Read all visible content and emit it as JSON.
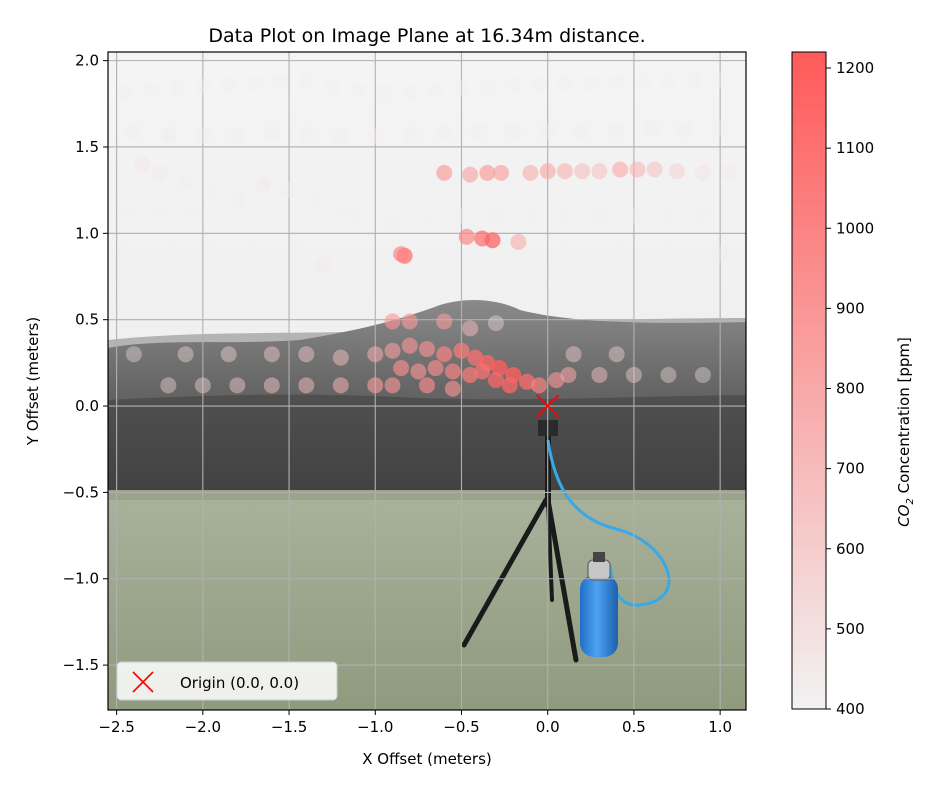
{
  "chart_data": {
    "type": "scatter",
    "title": "Data Plot on Image Plane at 16.34m distance.",
    "xlabel": "X Offset (meters)",
    "ylabel": "Y Offset (meters)",
    "xlim": [
      -2.55,
      1.15
    ],
    "ylim": [
      -1.76,
      2.05
    ],
    "x_ticks": [
      -2.5,
      -2.0,
      -1.5,
      -1.0,
      -0.5,
      0.0,
      0.5,
      1.0
    ],
    "x_tick_labels": [
      "−2.5",
      "−2.0",
      "−1.5",
      "−1.0",
      "−0.5",
      "0.0",
      "0.5",
      "1.0"
    ],
    "y_ticks": [
      -1.5,
      -1.0,
      -0.5,
      0.0,
      0.5,
      1.0,
      1.5,
      2.0
    ],
    "y_tick_labels": [
      "−1.5",
      "−1.0",
      "−0.5",
      "0.0",
      "0.5",
      "1.0",
      "1.5",
      "2.0"
    ],
    "grid": true,
    "background": "photo of field with tripod and gas cylinder",
    "colormap": {
      "low_color": "#f2f2f2",
      "high_color": "#ff5a5a",
      "min": 400,
      "max": 1220
    },
    "colorbar": {
      "label_prefix": "CO",
      "label_subscript": "2",
      "label_suffix": " Concentration [ppm]",
      "ticks": [
        400,
        500,
        600,
        700,
        800,
        900,
        1000,
        1100,
        1200
      ],
      "tick_labels": [
        "400",
        "500",
        "600",
        "700",
        "800",
        "900",
        "1000",
        "1100",
        "1200"
      ]
    },
    "legend": {
      "location": "lower-left",
      "entries": [
        {
          "label": "Origin (0.0, 0.0)",
          "marker": "x",
          "color": "#ff0000"
        }
      ]
    },
    "origin_marker": {
      "x": 0.0,
      "y": 0.0
    },
    "series": [
      {
        "name": "CO2",
        "points": [
          {
            "x": -2.45,
            "y": 1.82,
            "ppm": 420
          },
          {
            "x": -2.3,
            "y": 1.83,
            "ppm": 420
          },
          {
            "x": -2.15,
            "y": 1.84,
            "ppm": 420
          },
          {
            "x": -2.0,
            "y": 1.85,
            "ppm": 420
          },
          {
            "x": -1.85,
            "y": 1.86,
            "ppm": 420
          },
          {
            "x": -1.7,
            "y": 1.87,
            "ppm": 420
          },
          {
            "x": -1.55,
            "y": 1.88,
            "ppm": 420
          },
          {
            "x": -1.4,
            "y": 1.88,
            "ppm": 420
          },
          {
            "x": -1.25,
            "y": 1.85,
            "ppm": 420
          },
          {
            "x": -1.1,
            "y": 1.83,
            "ppm": 420
          },
          {
            "x": -0.95,
            "y": 1.82,
            "ppm": 420
          },
          {
            "x": -0.8,
            "y": 1.82,
            "ppm": 420
          },
          {
            "x": -0.65,
            "y": 1.83,
            "ppm": 420
          },
          {
            "x": -0.5,
            "y": 1.84,
            "ppm": 420
          },
          {
            "x": -0.35,
            "y": 1.85,
            "ppm": 420
          },
          {
            "x": -0.2,
            "y": 1.86,
            "ppm": 420
          },
          {
            "x": -0.05,
            "y": 1.86,
            "ppm": 420
          },
          {
            "x": 0.1,
            "y": 1.87,
            "ppm": 420
          },
          {
            "x": 0.25,
            "y": 1.87,
            "ppm": 420
          },
          {
            "x": 0.4,
            "y": 1.88,
            "ppm": 420
          },
          {
            "x": 0.55,
            "y": 1.88,
            "ppm": 420
          },
          {
            "x": 0.7,
            "y": 1.88,
            "ppm": 420
          },
          {
            "x": 0.85,
            "y": 1.89,
            "ppm": 420
          },
          {
            "x": 1.0,
            "y": 1.89,
            "ppm": 420
          },
          {
            "x": -2.4,
            "y": 1.58,
            "ppm": 440
          },
          {
            "x": -2.2,
            "y": 1.57,
            "ppm": 450
          },
          {
            "x": -2.0,
            "y": 1.57,
            "ppm": 440
          },
          {
            "x": -1.8,
            "y": 1.56,
            "ppm": 440
          },
          {
            "x": -1.6,
            "y": 1.58,
            "ppm": 430
          },
          {
            "x": -1.4,
            "y": 1.57,
            "ppm": 440
          },
          {
            "x": -1.2,
            "y": 1.56,
            "ppm": 430
          },
          {
            "x": -1.0,
            "y": 1.56,
            "ppm": 440
          },
          {
            "x": -0.8,
            "y": 1.57,
            "ppm": 430
          },
          {
            "x": -0.6,
            "y": 1.58,
            "ppm": 430
          },
          {
            "x": -0.4,
            "y": 1.59,
            "ppm": 430
          },
          {
            "x": -0.2,
            "y": 1.59,
            "ppm": 430
          },
          {
            "x": 0.0,
            "y": 1.59,
            "ppm": 430
          },
          {
            "x": 0.2,
            "y": 1.59,
            "ppm": 430
          },
          {
            "x": 0.4,
            "y": 1.6,
            "ppm": 430
          },
          {
            "x": 0.6,
            "y": 1.61,
            "ppm": 430
          },
          {
            "x": 0.8,
            "y": 1.6,
            "ppm": 430
          },
          {
            "x": 1.0,
            "y": 1.61,
            "ppm": 430
          },
          {
            "x": -2.35,
            "y": 1.4,
            "ppm": 480
          },
          {
            "x": -2.25,
            "y": 1.35,
            "ppm": 460
          },
          {
            "x": -2.1,
            "y": 1.3,
            "ppm": 450
          },
          {
            "x": -1.95,
            "y": 1.25,
            "ppm": 440
          },
          {
            "x": -1.8,
            "y": 1.2,
            "ppm": 450
          },
          {
            "x": -1.65,
            "y": 1.28,
            "ppm": 470
          },
          {
            "x": -1.5,
            "y": 1.25,
            "ppm": 450
          },
          {
            "x": -1.35,
            "y": 1.2,
            "ppm": 440
          },
          {
            "x": -1.2,
            "y": 1.12,
            "ppm": 440
          },
          {
            "x": -0.6,
            "y": 1.35,
            "ppm": 900
          },
          {
            "x": -0.45,
            "y": 1.34,
            "ppm": 850
          },
          {
            "x": -0.35,
            "y": 1.35,
            "ppm": 900
          },
          {
            "x": -0.27,
            "y": 1.35,
            "ppm": 880
          },
          {
            "x": -0.1,
            "y": 1.35,
            "ppm": 800
          },
          {
            "x": 0.0,
            "y": 1.36,
            "ppm": 830
          },
          {
            "x": 0.1,
            "y": 1.36,
            "ppm": 780
          },
          {
            "x": 0.2,
            "y": 1.36,
            "ppm": 720
          },
          {
            "x": 0.3,
            "y": 1.36,
            "ppm": 700
          },
          {
            "x": 0.42,
            "y": 1.37,
            "ppm": 820
          },
          {
            "x": 0.52,
            "y": 1.37,
            "ppm": 760
          },
          {
            "x": 0.62,
            "y": 1.37,
            "ppm": 700
          },
          {
            "x": 0.75,
            "y": 1.36,
            "ppm": 600
          },
          {
            "x": 0.9,
            "y": 1.35,
            "ppm": 500
          },
          {
            "x": 1.05,
            "y": 1.35,
            "ppm": 460
          },
          {
            "x": -2.45,
            "y": 1.12,
            "ppm": 420
          },
          {
            "x": -2.25,
            "y": 1.12,
            "ppm": 420
          },
          {
            "x": -2.05,
            "y": 1.12,
            "ppm": 420
          },
          {
            "x": -1.1,
            "y": 1.1,
            "ppm": 420
          },
          {
            "x": -0.9,
            "y": 1.05,
            "ppm": 430
          },
          {
            "x": -0.7,
            "y": 1.08,
            "ppm": 420
          },
          {
            "x": -0.5,
            "y": 1.1,
            "ppm": 420
          },
          {
            "x": -0.3,
            "y": 1.1,
            "ppm": 420
          },
          {
            "x": -0.1,
            "y": 1.1,
            "ppm": 420
          },
          {
            "x": 0.1,
            "y": 1.1,
            "ppm": 420
          },
          {
            "x": 0.3,
            "y": 1.1,
            "ppm": 420
          },
          {
            "x": 0.5,
            "y": 1.1,
            "ppm": 420
          },
          {
            "x": 0.7,
            "y": 1.11,
            "ppm": 420
          },
          {
            "x": 0.9,
            "y": 1.11,
            "ppm": 420
          },
          {
            "x": -0.47,
            "y": 0.98,
            "ppm": 1000
          },
          {
            "x": -0.38,
            "y": 0.97,
            "ppm": 1100
          },
          {
            "x": -0.32,
            "y": 0.96,
            "ppm": 1150
          },
          {
            "x": -0.17,
            "y": 0.95,
            "ppm": 800
          },
          {
            "x": -0.83,
            "y": 0.87,
            "ppm": 1100
          },
          {
            "x": -0.85,
            "y": 0.88,
            "ppm": 1000
          },
          {
            "x": -2.45,
            "y": 0.88,
            "ppm": 430
          },
          {
            "x": -2.2,
            "y": 0.88,
            "ppm": 430
          },
          {
            "x": -1.95,
            "y": 0.88,
            "ppm": 430
          },
          {
            "x": -1.7,
            "y": 0.88,
            "ppm": 430
          },
          {
            "x": -1.45,
            "y": 0.88,
            "ppm": 430
          },
          {
            "x": -1.3,
            "y": 0.82,
            "ppm": 460
          },
          {
            "x": -1.1,
            "y": 0.86,
            "ppm": 440
          },
          {
            "x": -0.6,
            "y": 0.86,
            "ppm": 430
          },
          {
            "x": 0.1,
            "y": 0.88,
            "ppm": 420
          },
          {
            "x": 0.4,
            "y": 0.88,
            "ppm": 420
          },
          {
            "x": 0.7,
            "y": 0.88,
            "ppm": 420
          },
          {
            "x": 1.0,
            "y": 0.88,
            "ppm": 420
          },
          {
            "x": -2.45,
            "y": 0.7,
            "ppm": 420
          },
          {
            "x": -2.15,
            "y": 0.7,
            "ppm": 420
          },
          {
            "x": -1.85,
            "y": 0.7,
            "ppm": 420
          },
          {
            "x": -1.55,
            "y": 0.7,
            "ppm": 420
          },
          {
            "x": -1.25,
            "y": 0.7,
            "ppm": 420
          },
          {
            "x": -0.95,
            "y": 0.7,
            "ppm": 430
          },
          {
            "x": -0.65,
            "y": 0.7,
            "ppm": 430
          },
          {
            "x": -0.35,
            "y": 0.7,
            "ppm": 420
          },
          {
            "x": -0.05,
            "y": 0.7,
            "ppm": 420
          },
          {
            "x": 0.25,
            "y": 0.7,
            "ppm": 420
          },
          {
            "x": 0.55,
            "y": 0.7,
            "ppm": 420
          },
          {
            "x": 0.85,
            "y": 0.7,
            "ppm": 420
          },
          {
            "x": -0.9,
            "y": 0.49,
            "ppm": 900
          },
          {
            "x": -0.8,
            "y": 0.49,
            "ppm": 880
          },
          {
            "x": -0.6,
            "y": 0.49,
            "ppm": 860
          },
          {
            "x": -0.45,
            "y": 0.45,
            "ppm": 700
          },
          {
            "x": -0.3,
            "y": 0.48,
            "ppm": 500
          },
          {
            "x": -1.6,
            "y": 0.3,
            "ppm": 600
          },
          {
            "x": -1.4,
            "y": 0.3,
            "ppm": 620
          },
          {
            "x": -1.2,
            "y": 0.28,
            "ppm": 650
          },
          {
            "x": -1.0,
            "y": 0.3,
            "ppm": 750
          },
          {
            "x": -0.9,
            "y": 0.32,
            "ppm": 850
          },
          {
            "x": -0.8,
            "y": 0.35,
            "ppm": 900
          },
          {
            "x": -0.7,
            "y": 0.33,
            "ppm": 920
          },
          {
            "x": -0.6,
            "y": 0.3,
            "ppm": 1000
          },
          {
            "x": -0.5,
            "y": 0.32,
            "ppm": 1050
          },
          {
            "x": -0.42,
            "y": 0.28,
            "ppm": 1100
          },
          {
            "x": -0.35,
            "y": 0.25,
            "ppm": 1150
          },
          {
            "x": -0.28,
            "y": 0.22,
            "ppm": 1200
          },
          {
            "x": -0.2,
            "y": 0.18,
            "ppm": 1180
          },
          {
            "x": -0.12,
            "y": 0.14,
            "ppm": 1120
          },
          {
            "x": -0.05,
            "y": 0.12,
            "ppm": 1000
          },
          {
            "x": 0.05,
            "y": 0.15,
            "ppm": 900
          },
          {
            "x": 0.12,
            "y": 0.18,
            "ppm": 800
          },
          {
            "x": -0.85,
            "y": 0.22,
            "ppm": 950
          },
          {
            "x": -0.75,
            "y": 0.2,
            "ppm": 900
          },
          {
            "x": -0.65,
            "y": 0.22,
            "ppm": 950
          },
          {
            "x": -0.55,
            "y": 0.2,
            "ppm": 1000
          },
          {
            "x": -0.45,
            "y": 0.18,
            "ppm": 1050
          },
          {
            "x": -0.38,
            "y": 0.2,
            "ppm": 1100
          },
          {
            "x": -0.3,
            "y": 0.15,
            "ppm": 1150
          },
          {
            "x": -0.22,
            "y": 0.12,
            "ppm": 1150
          },
          {
            "x": -1.8,
            "y": 0.12,
            "ppm": 600
          },
          {
            "x": -1.6,
            "y": 0.12,
            "ppm": 650
          },
          {
            "x": -1.4,
            "y": 0.12,
            "ppm": 700
          },
          {
            "x": -1.2,
            "y": 0.12,
            "ppm": 750
          },
          {
            "x": -1.0,
            "y": 0.12,
            "ppm": 850
          },
          {
            "x": -0.9,
            "y": 0.12,
            "ppm": 900
          },
          {
            "x": -0.7,
            "y": 0.12,
            "ppm": 950
          },
          {
            "x": -0.55,
            "y": 0.1,
            "ppm": 900
          },
          {
            "x": -2.2,
            "y": 0.12,
            "ppm": 520
          },
          {
            "x": -2.0,
            "y": 0.12,
            "ppm": 550
          },
          {
            "x": -2.4,
            "y": 0.3,
            "ppm": 480
          },
          {
            "x": -2.1,
            "y": 0.3,
            "ppm": 500
          },
          {
            "x": -1.85,
            "y": 0.3,
            "ppm": 540
          },
          {
            "x": 0.3,
            "y": 0.18,
            "ppm": 650
          },
          {
            "x": 0.5,
            "y": 0.18,
            "ppm": 560
          },
          {
            "x": 0.7,
            "y": 0.18,
            "ppm": 500
          },
          {
            "x": 0.9,
            "y": 0.18,
            "ppm": 460
          },
          {
            "x": 0.15,
            "y": 0.3,
            "ppm": 600
          },
          {
            "x": 0.4,
            "y": 0.3,
            "ppm": 520
          }
        ]
      }
    ]
  }
}
